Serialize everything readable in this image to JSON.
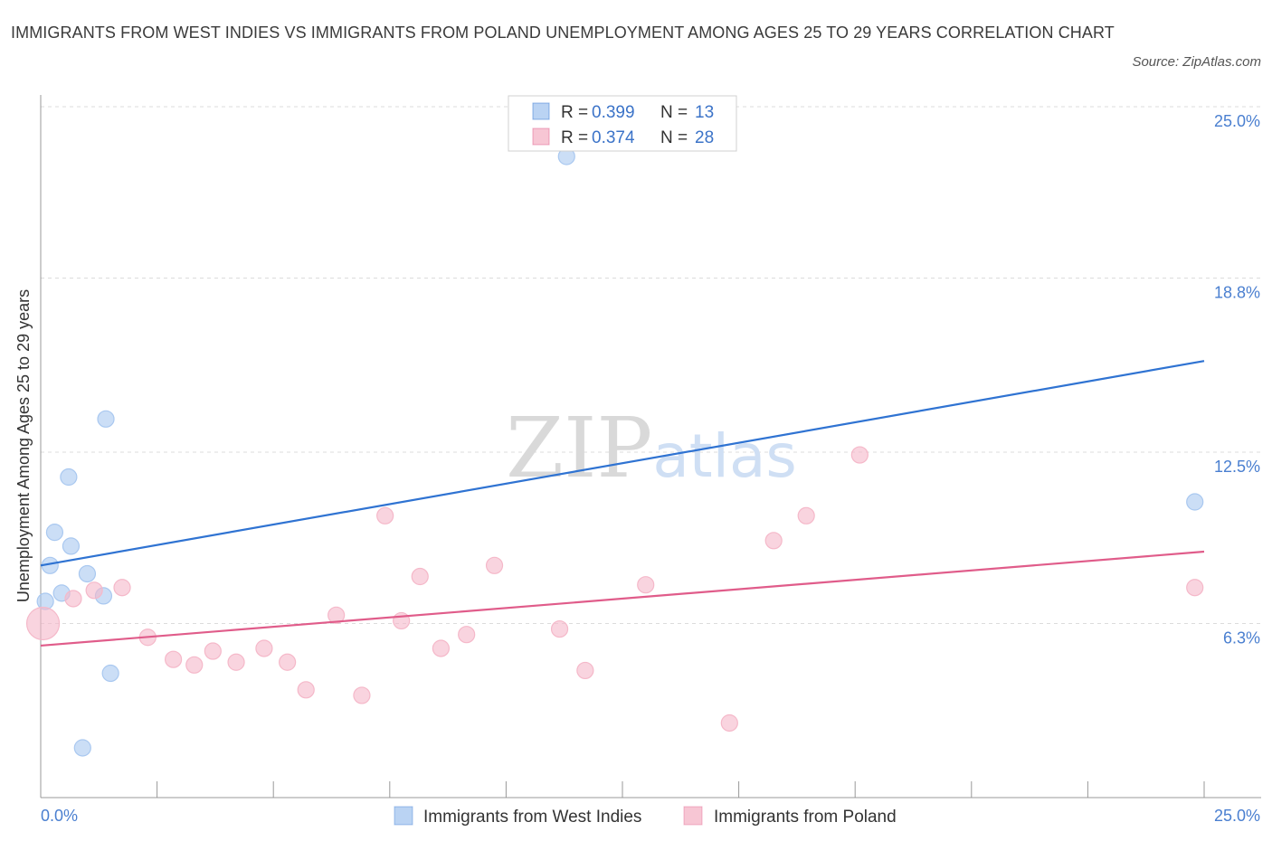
{
  "chart_data": {
    "type": "scatter",
    "title": "IMMIGRANTS FROM WEST INDIES VS IMMIGRANTS FROM POLAND UNEMPLOYMENT AMONG AGES 25 TO 29 YEARS CORRELATION CHART",
    "source": "Source: ZipAtlas.com",
    "ylabel": "Unemployment Among Ages 25 to 29 years",
    "xlabel": "",
    "xlim": [
      0,
      25
    ],
    "ylim": [
      0,
      25
    ],
    "x_tick_labels": [
      "0.0%",
      "25.0%"
    ],
    "y_ticks": [
      6.3,
      12.5,
      18.8,
      25.0
    ],
    "y_tick_labels": [
      "6.3%",
      "12.5%",
      "18.8%",
      "25.0%"
    ],
    "grid": true,
    "watermark": "ZIPatlas",
    "legend_position": "top-center",
    "series": [
      {
        "name": "Immigrants from West Indies",
        "color": "#a9c8f0",
        "line_color": "#2f73d2",
        "R": "0.399",
        "N": "13",
        "trend": {
          "x": [
            0,
            25
          ],
          "y": [
            8.4,
            15.8
          ]
        },
        "points": [
          {
            "x": 0.1,
            "y": 7.1,
            "size": 9
          },
          {
            "x": 0.2,
            "y": 8.4,
            "size": 9
          },
          {
            "x": 0.3,
            "y": 9.6,
            "size": 9
          },
          {
            "x": 0.45,
            "y": 7.4,
            "size": 9
          },
          {
            "x": 0.6,
            "y": 11.6,
            "size": 9
          },
          {
            "x": 0.65,
            "y": 9.1,
            "size": 9
          },
          {
            "x": 0.9,
            "y": 1.8,
            "size": 9
          },
          {
            "x": 1.0,
            "y": 8.1,
            "size": 9
          },
          {
            "x": 1.35,
            "y": 7.3,
            "size": 9
          },
          {
            "x": 1.4,
            "y": 13.7,
            "size": 9
          },
          {
            "x": 1.5,
            "y": 4.5,
            "size": 9
          },
          {
            "x": 11.3,
            "y": 23.2,
            "size": 9
          },
          {
            "x": 24.8,
            "y": 10.7,
            "size": 9
          }
        ]
      },
      {
        "name": "Immigrants from Poland",
        "color": "#f5b8c9",
        "line_color": "#e05c8a",
        "R": "0.374",
        "N": "28",
        "trend": {
          "x": [
            0,
            25
          ],
          "y": [
            5.5,
            8.9
          ]
        },
        "points": [
          {
            "x": 0.05,
            "y": 6.3,
            "size": 18
          },
          {
            "x": 0.7,
            "y": 7.2,
            "size": 9
          },
          {
            "x": 1.15,
            "y": 7.5,
            "size": 9
          },
          {
            "x": 1.75,
            "y": 7.6,
            "size": 9
          },
          {
            "x": 2.3,
            "y": 5.8,
            "size": 9
          },
          {
            "x": 2.85,
            "y": 5.0,
            "size": 9
          },
          {
            "x": 3.3,
            "y": 4.8,
            "size": 9
          },
          {
            "x": 3.7,
            "y": 5.3,
            "size": 9
          },
          {
            "x": 4.2,
            "y": 4.9,
            "size": 9
          },
          {
            "x": 4.8,
            "y": 5.4,
            "size": 9
          },
          {
            "x": 5.3,
            "y": 4.9,
            "size": 9
          },
          {
            "x": 5.7,
            "y": 3.9,
            "size": 9
          },
          {
            "x": 6.35,
            "y": 6.6,
            "size": 9
          },
          {
            "x": 6.9,
            "y": 3.7,
            "size": 9
          },
          {
            "x": 7.4,
            "y": 10.2,
            "size": 9
          },
          {
            "x": 7.75,
            "y": 6.4,
            "size": 9
          },
          {
            "x": 8.15,
            "y": 8.0,
            "size": 9
          },
          {
            "x": 8.6,
            "y": 5.4,
            "size": 9
          },
          {
            "x": 9.15,
            "y": 5.9,
            "size": 9
          },
          {
            "x": 9.75,
            "y": 8.4,
            "size": 9
          },
          {
            "x": 11.15,
            "y": 6.1,
            "size": 9
          },
          {
            "x": 11.7,
            "y": 4.6,
            "size": 9
          },
          {
            "x": 13.0,
            "y": 7.7,
            "size": 9
          },
          {
            "x": 14.8,
            "y": 2.7,
            "size": 9
          },
          {
            "x": 15.75,
            "y": 9.3,
            "size": 9
          },
          {
            "x": 16.45,
            "y": 10.2,
            "size": 9
          },
          {
            "x": 17.6,
            "y": 12.4,
            "size": 9
          },
          {
            "x": 24.8,
            "y": 7.6,
            "size": 9
          }
        ]
      }
    ]
  }
}
